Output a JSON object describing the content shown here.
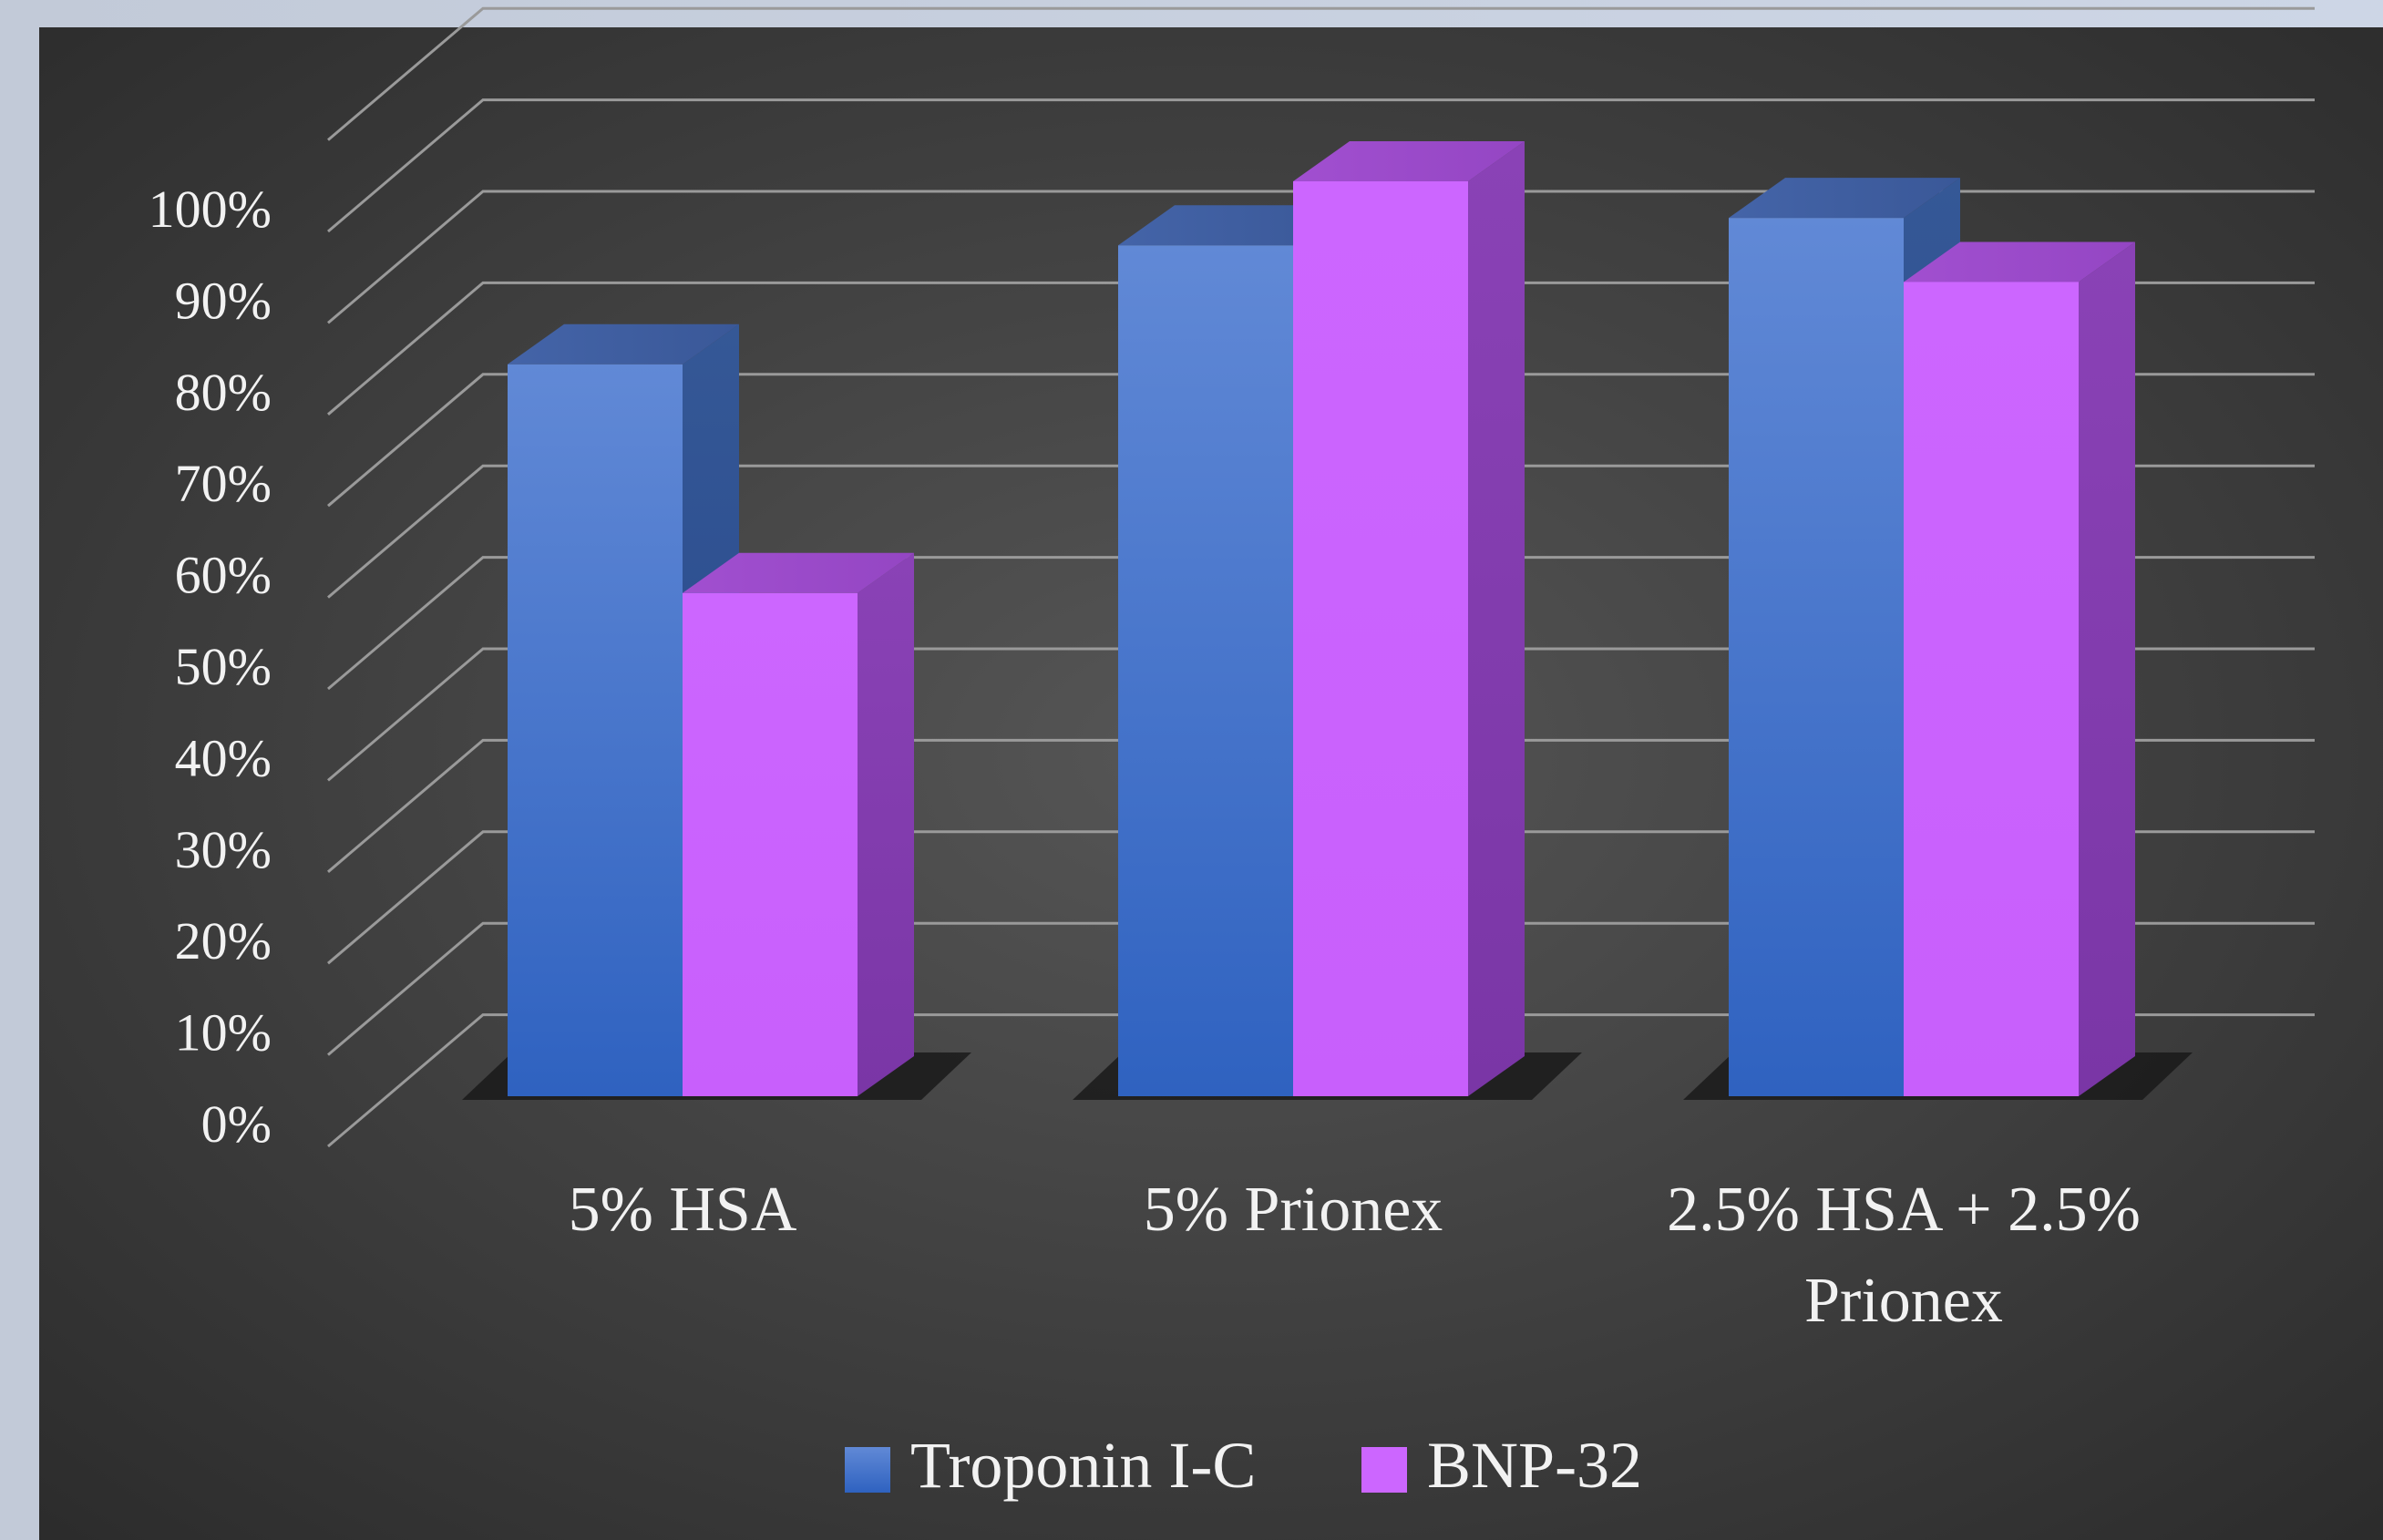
{
  "chart_data": {
    "type": "bar",
    "categories": [
      [
        "5% HSA"
      ],
      [
        "5% Prionex"
      ],
      [
        "2.5% HSA + 2.5%",
        "Prionex"
      ]
    ],
    "series": [
      {
        "name": "Troponin I-C",
        "values": [
          80,
          93,
          96
        ],
        "color": "#4472c4"
      },
      {
        "name": "BNP-32",
        "values": [
          55,
          100,
          89
        ],
        "color": "#cc66ff"
      }
    ],
    "y_ticks": [
      "0%",
      "10%",
      "20%",
      "30%",
      "40%",
      "50%",
      "60%",
      "70%",
      "80%",
      "90%",
      "100%"
    ],
    "ylim": [
      0,
      110
    ],
    "grid": true,
    "legend_position": "bottom-center",
    "style": "3d-column",
    "background_color": "#3b3b3b"
  }
}
